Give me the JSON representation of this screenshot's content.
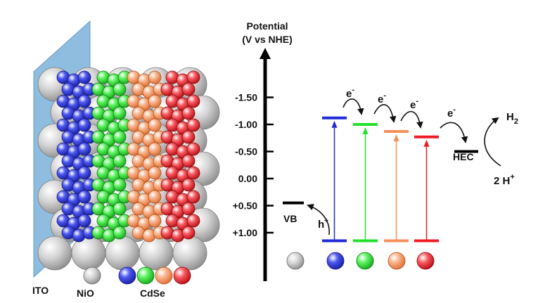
{
  "left_panel": {
    "ito_label": "ITO",
    "nio_label": "NiO",
    "cdse_label": "CdSe",
    "ito_color": "#8fbde0",
    "nio_color": "#c8c8c8",
    "qd_colors": [
      "#1f2bd6",
      "#22e02a",
      "#f4915a",
      "#ee1c24"
    ]
  },
  "axis": {
    "title_line1": "Potential",
    "title_line2": "(V vs NHE)",
    "tick_labels": [
      "-1.50",
      "-1.00",
      "-0.50",
      "0.00",
      "+0.50",
      "+1.00"
    ]
  },
  "energy_diagram": {
    "vb_label": "VB",
    "hole_label": "h",
    "hole_sup": "+",
    "electron_label": "e",
    "electron_sup": "-",
    "hec_label": "HEC",
    "h2_label": "H",
    "h2_sub": "2",
    "protons_label": "2 H",
    "protons_sup": "+",
    "levels": [
      {
        "color": "#1f2bd6",
        "cb": -1.12,
        "vb": 1.15
      },
      {
        "color": "#22e02a",
        "cb": -1.0,
        "vb": 1.15
      },
      {
        "color": "#f4915a",
        "cb": -0.87,
        "vb": 1.15
      },
      {
        "color": "#ee1c24",
        "cb": -0.77,
        "vb": 1.15
      }
    ],
    "vb_level": 0.45,
    "hec_level": -0.5
  }
}
